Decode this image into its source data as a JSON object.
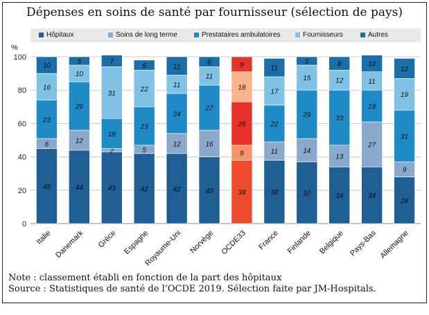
{
  "title": "Dépenses en soins de santé par fournisseur (sélection de pays)",
  "notes": {
    "line1": "Note : classement établi en fonction de la part des hôpitaux",
    "line2": "Source : Statistiques de santé de l’OCDE 2019. Sélection faite par JM-Hospitals."
  },
  "chart_data": {
    "type": "bar",
    "stacked": true,
    "title": "Dépenses en soins de santé par fournisseur (sélection de pays)",
    "ylabel": "%",
    "ylim": [
      0,
      100
    ],
    "yticks": [
      0,
      20,
      40,
      60,
      80,
      100
    ],
    "grid": true,
    "legend_position": "top",
    "categories": [
      "Italie",
      "Danemark",
      "Grèce",
      "Espagne",
      "Royaume-Uni",
      "Norvège",
      "OCDE33",
      "France",
      "Finlande",
      "Belgique",
      "Pays-Bas",
      "Allemagne"
    ],
    "highlight_category": "OCDE33",
    "series": [
      {
        "name": "Hôpitaux",
        "color": "#1f5f93",
        "highlight_color": "#ef4b2c",
        "values": [
          45,
          44,
          43,
          42,
          42,
          40,
          38,
          38,
          37,
          34,
          34,
          28
        ]
      },
      {
        "name": "Soins de long terme",
        "color": "#8aa9cc",
        "highlight_color": "#f7956a",
        "values": [
          6,
          12,
          2,
          5,
          12,
          16,
          9,
          11,
          14,
          13,
          27,
          9
        ]
      },
      {
        "name": "Prestataires ambulatoires",
        "color": "#1e8bc6",
        "highlight_color": "#e8322a",
        "values": [
          23,
          29,
          18,
          23,
          24,
          27,
          26,
          22,
          29,
          33,
          19,
          31
        ]
      },
      {
        "name": "Fournisseurs",
        "color": "#80c2e6",
        "highlight_color": "#f9b48c",
        "values": [
          16,
          10,
          31,
          22,
          11,
          11,
          18,
          17,
          15,
          12,
          11,
          19
        ]
      },
      {
        "name": "Autres",
        "color": "#1a6fa8",
        "highlight_color": "#e2362c",
        "values": [
          10,
          5,
          7,
          6,
          11,
          6,
          9,
          11,
          5,
          8,
          10,
          12
        ]
      }
    ]
  }
}
